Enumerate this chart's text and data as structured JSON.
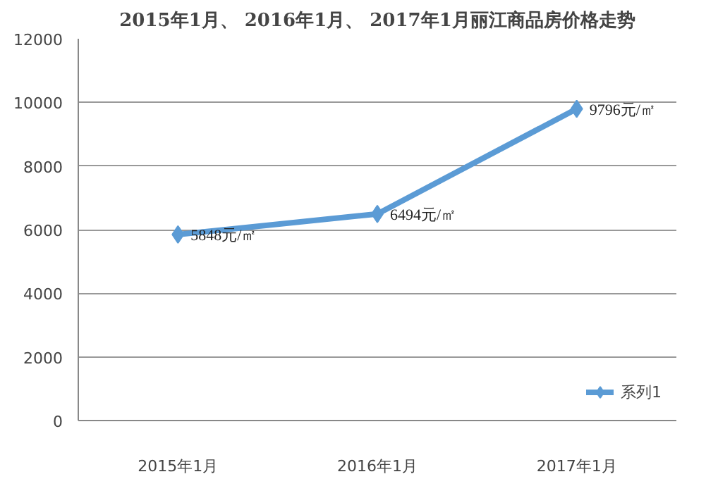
{
  "chart_data": {
    "type": "line",
    "title": "2015年1月、 2016年1月、 2017年1月丽江商品房价格走势",
    "categories": [
      "2015年1月",
      "2016年1月",
      "2017年1月"
    ],
    "series": [
      {
        "name": "系列1",
        "color": "#5b9bd5",
        "values": [
          5848,
          6494,
          9796
        ],
        "value_labels": [
          "5848元/㎡",
          "6494元/㎡",
          "9796元/㎡"
        ]
      }
    ],
    "ylim": [
      0,
      12000
    ],
    "yticks": [
      0,
      2000,
      4000,
      6000,
      8000,
      10000,
      12000
    ],
    "grid": "y",
    "legend": "bottom right",
    "marker": "diamond",
    "line_style": "solid"
  }
}
